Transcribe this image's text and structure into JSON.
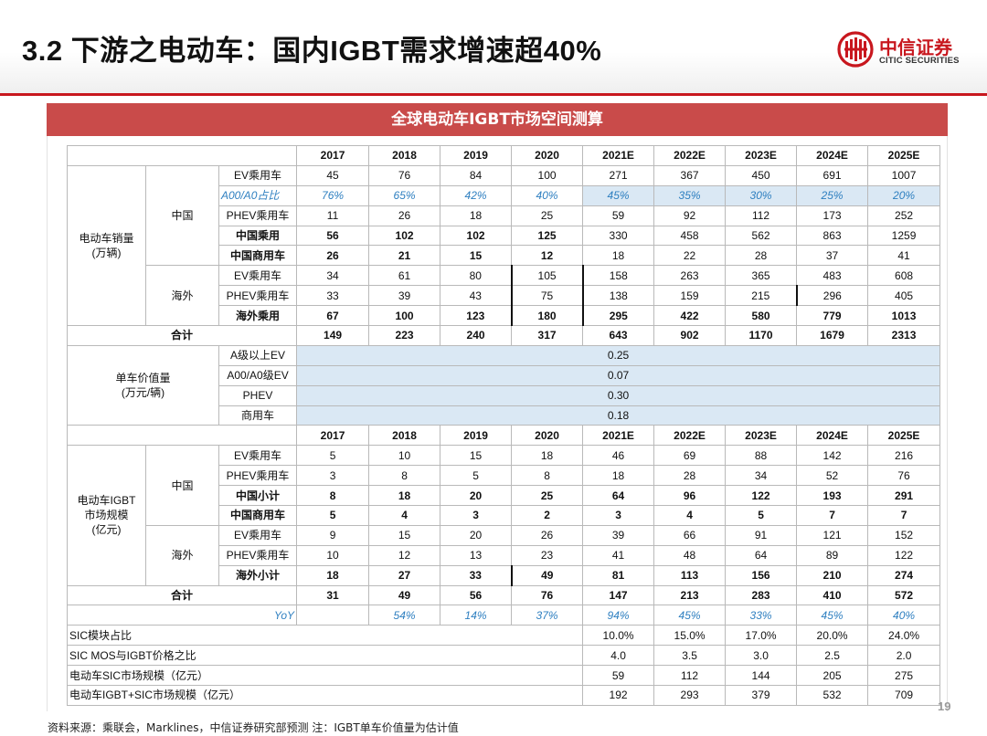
{
  "page": {
    "title": "3.2 下游之电动车：国内IGBT需求增速超40%",
    "logo_cn": "中信证券",
    "logo_en": "CITIC SECURITIES",
    "banner": "全球电动车IGBT市场空间测算",
    "footnote": "资料来源：乘联会，Marklines，中信证券研究部预测      注：IGBT单车价值量为估计值",
    "page_number": "19"
  },
  "table": {
    "years": [
      "2017",
      "2018",
      "2019",
      "2020",
      "2021E",
      "2022E",
      "2023E",
      "2024E",
      "2025E"
    ],
    "sales": {
      "label": "电动车销量\n(万辆)",
      "china": "中国",
      "overseas": "海外",
      "total_label": "合计",
      "rows": [
        {
          "label": "EV乘用车",
          "values": [
            "45",
            "76",
            "84",
            "100",
            "271",
            "367",
            "450",
            "691",
            "1007"
          ]
        },
        {
          "label": "A00/A0占比",
          "values": [
            "76%",
            "65%",
            "42%",
            "40%",
            "45%",
            "35%",
            "30%",
            "25%",
            "20%"
          ]
        },
        {
          "label": "PHEV乘用车",
          "values": [
            "11",
            "26",
            "18",
            "25",
            "59",
            "92",
            "112",
            "173",
            "252"
          ]
        },
        {
          "label": "中国乘用",
          "values": [
            "56",
            "102",
            "102",
            "125",
            "330",
            "458",
            "562",
            "863",
            "1259"
          ]
        },
        {
          "label": "中国商用车",
          "values": [
            "26",
            "21",
            "15",
            "12",
            "18",
            "22",
            "28",
            "37",
            "41"
          ]
        },
        {
          "label": "EV乘用车",
          "values": [
            "34",
            "61",
            "80",
            "105",
            "158",
            "263",
            "365",
            "483",
            "608"
          ]
        },
        {
          "label": "PHEV乘用车",
          "values": [
            "33",
            "39",
            "43",
            "75",
            "138",
            "159",
            "215",
            "296",
            "405"
          ]
        },
        {
          "label": "海外乘用",
          "values": [
            "67",
            "100",
            "123",
            "180",
            "295",
            "422",
            "580",
            "779",
            "1013"
          ]
        },
        {
          "label": "合计",
          "values": [
            "149",
            "223",
            "240",
            "317",
            "643",
            "902",
            "1170",
            "1679",
            "2313"
          ]
        }
      ]
    },
    "unit_value": {
      "label": "单车价值量\n(万元/辆)",
      "rows": [
        {
          "label": "A级以上EV",
          "value": "0.25"
        },
        {
          "label": "A00/A0级EV",
          "value": "0.07"
        },
        {
          "label": "PHEV",
          "value": "0.30"
        },
        {
          "label": "商用车",
          "value": "0.18"
        }
      ]
    },
    "igbt": {
      "label": "电动车IGBT\n市场规模\n(亿元)",
      "china": "中国",
      "overseas": "海外",
      "rows": [
        {
          "label": "EV乘用车",
          "values": [
            "5",
            "10",
            "15",
            "18",
            "46",
            "69",
            "88",
            "142",
            "216"
          ]
        },
        {
          "label": "PHEV乘用车",
          "values": [
            "3",
            "8",
            "5",
            "8",
            "18",
            "28",
            "34",
            "52",
            "76"
          ]
        },
        {
          "label": "中国小计",
          "values": [
            "8",
            "18",
            "20",
            "25",
            "64",
            "96",
            "122",
            "193",
            "291"
          ]
        },
        {
          "label": "中国商用车",
          "values": [
            "5",
            "4",
            "3",
            "2",
            "3",
            "4",
            "5",
            "7",
            "7"
          ]
        },
        {
          "label": "EV乘用车",
          "values": [
            "9",
            "15",
            "20",
            "26",
            "39",
            "66",
            "91",
            "121",
            "152"
          ]
        },
        {
          "label": "PHEV乘用车",
          "values": [
            "10",
            "12",
            "13",
            "23",
            "41",
            "48",
            "64",
            "89",
            "122"
          ]
        },
        {
          "label": "海外小计",
          "values": [
            "18",
            "27",
            "33",
            "49",
            "81",
            "113",
            "156",
            "210",
            "274"
          ]
        },
        {
          "label": "合计",
          "values": [
            "31",
            "49",
            "56",
            "76",
            "147",
            "213",
            "283",
            "410",
            "572"
          ]
        },
        {
          "label": "YoY",
          "values": [
            "",
            "54%",
            "14%",
            "37%",
            "94%",
            "45%",
            "33%",
            "45%",
            "40%"
          ]
        }
      ]
    },
    "sic": [
      {
        "label": "SIC模块占比",
        "values": [
          "10.0%",
          "15.0%",
          "17.0%",
          "20.0%",
          "24.0%"
        ]
      },
      {
        "label": "SIC MOS与IGBT价格之比",
        "values": [
          "4.0",
          "3.5",
          "3.0",
          "2.5",
          "2.0"
        ]
      },
      {
        "label": "电动车SIC市场规模（亿元）",
        "values": [
          "59",
          "112",
          "144",
          "205",
          "275"
        ]
      },
      {
        "label": "电动车IGBT+SIC市场规模（亿元）",
        "values": [
          "192",
          "293",
          "379",
          "532",
          "709"
        ]
      }
    ]
  }
}
